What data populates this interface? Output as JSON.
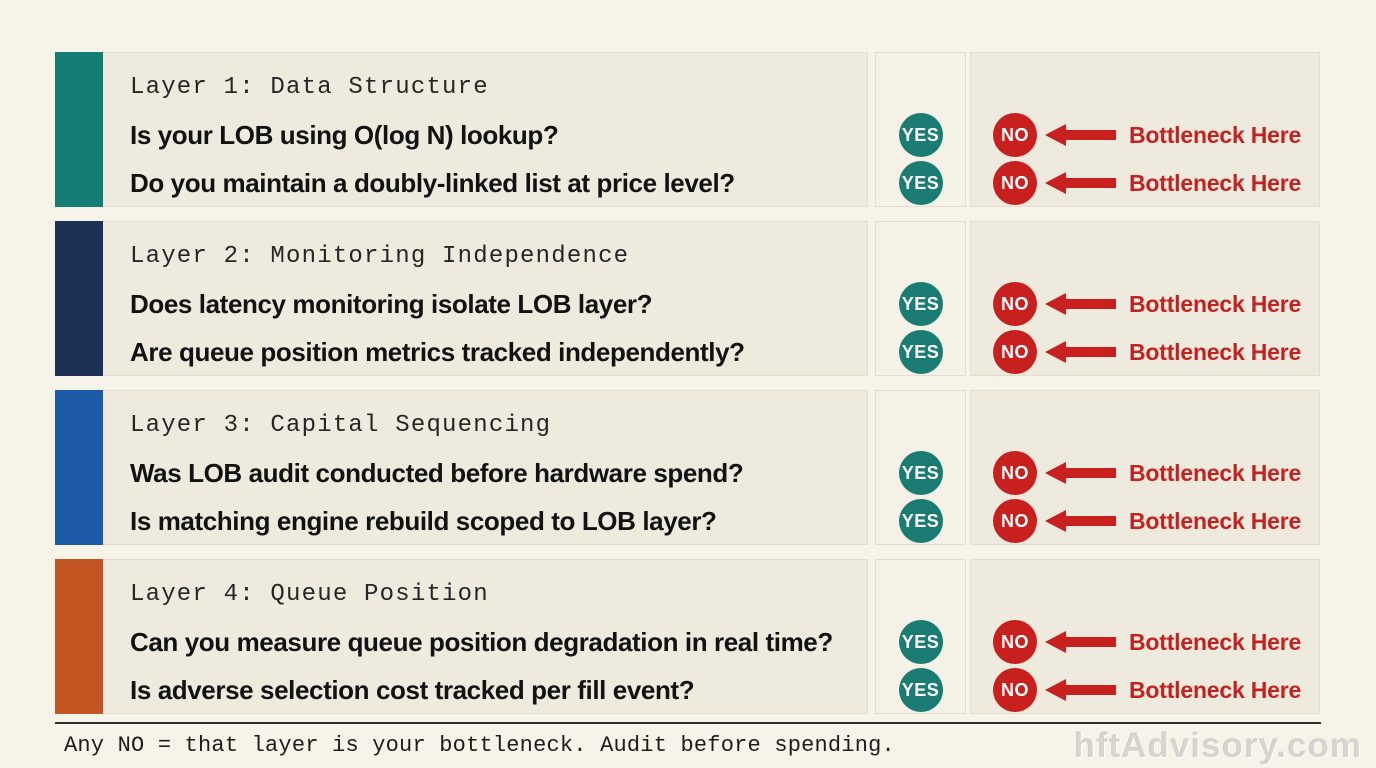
{
  "page": {
    "footer_note": "Any NO = that layer is your bottleneck. Audit before spending.",
    "watermark": "hftAdvisory.com"
  },
  "badges": {
    "yes_label": "YES",
    "no_label": "NO",
    "bottleneck_label": "Bottleneck Here"
  },
  "colors": {
    "page_bg": "#f6f3e9",
    "panel_bg": "#eeeade",
    "yes_column_bg": "#f4f1e7",
    "yes_badge": "#1b7c74",
    "no_badge": "#c8201e",
    "bottleneck_text": "#c32320",
    "layer1_accent": "#147d74",
    "layer2_accent": "#1d3056",
    "layer3_accent": "#1d5ba8",
    "layer4_accent": "#c35522"
  },
  "layers": [
    {
      "title": "Layer 1: Data Structure",
      "accent": "#147d74",
      "questions": [
        "Is your LOB using O(log N) lookup?",
        "Do you maintain a doubly-linked list at price level?"
      ]
    },
    {
      "title": "Layer 2: Monitoring Independence",
      "accent": "#1d3056",
      "questions": [
        "Does latency monitoring isolate LOB layer?",
        "Are queue position metrics tracked independently?"
      ]
    },
    {
      "title": "Layer 3: Capital Sequencing",
      "accent": "#1d5ba8",
      "questions": [
        "Was LOB audit conducted before hardware spend?",
        "Is matching engine rebuild scoped to LOB layer?"
      ]
    },
    {
      "title": "Layer 4: Queue Position",
      "accent": "#c35522",
      "questions": [
        "Can you measure queue position degradation in real time?",
        "Is adverse selection cost tracked per fill event?"
      ]
    }
  ]
}
